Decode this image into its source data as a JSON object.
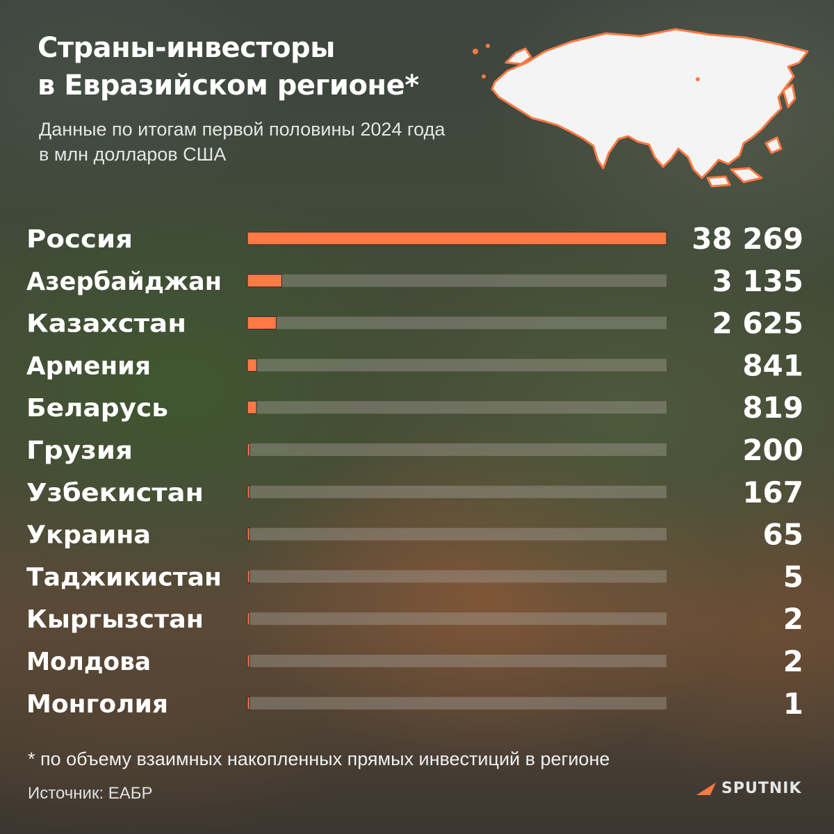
{
  "header": {
    "title_line1": "Страны-инвесторы",
    "title_line2": "в Евразийском регионе*",
    "subtitle_line1": "Данные по итогам первой половины 2024 года",
    "subtitle_line2": "в млн долларов США"
  },
  "chart_data": {
    "type": "bar",
    "orientation": "horizontal",
    "categories": [
      "Россия",
      "Азербайджан",
      "Казахстан",
      "Армения",
      "Беларусь",
      "Грузия",
      "Узбекистан",
      "Украина",
      "Таджикистан",
      "Кыргызстан",
      "Молдова",
      "Монголия"
    ],
    "values": [
      38269,
      3135,
      2625,
      841,
      819,
      200,
      167,
      65,
      5,
      2,
      2,
      1
    ],
    "value_labels": [
      "38 269",
      "3 135",
      "2 625",
      "841",
      "819",
      "200",
      "167",
      "65",
      "5",
      "2",
      "2",
      "1"
    ],
    "xlim": [
      0,
      38269
    ],
    "grid": false,
    "legend": "none"
  },
  "footer": {
    "footnote": "* по объему взаимных накопленных прямых инвестиций в регионе",
    "source": "Источник: ЕАБР",
    "logo_text": "SPUTNIK"
  },
  "colors": {
    "bar": "#ff7a45",
    "track": "rgba(165,160,150,0.42)",
    "map_fill": "#f4f4f4",
    "map_outline": "#ff7a45",
    "text": "#ffffff"
  },
  "icons": {
    "map": "eurasia-map-icon",
    "logo": "sputnik-logo-icon"
  }
}
